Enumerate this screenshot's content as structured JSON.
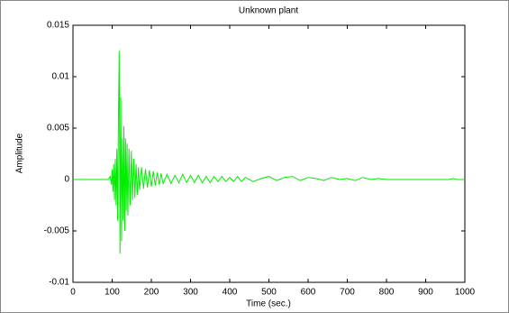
{
  "chart_data": {
    "type": "line",
    "title": "Unknown plant",
    "x_label": "Time (sec.)",
    "y_label": "Amplitude",
    "xlim": [
      0,
      1000
    ],
    "xticks": [
      0,
      100,
      200,
      300,
      400,
      500,
      600,
      700,
      800,
      900,
      1000
    ],
    "ylim": [
      -0.01,
      0.015
    ],
    "yticks": [
      -0.01,
      -0.005,
      0,
      0.005,
      0.01,
      0.015
    ],
    "x": [
      0,
      90,
      95,
      98,
      100,
      102,
      104,
      106,
      108,
      110,
      112,
      114,
      116,
      118,
      120,
      122,
      124,
      126,
      128,
      130,
      132,
      134,
      136,
      138,
      140,
      143,
      146,
      149,
      152,
      155,
      158,
      161,
      164,
      167,
      170,
      175,
      180,
      185,
      190,
      195,
      200,
      205,
      210,
      215,
      220,
      225,
      230,
      240,
      250,
      260,
      270,
      280,
      290,
      300,
      310,
      320,
      330,
      340,
      350,
      360,
      370,
      380,
      390,
      400,
      410,
      420,
      430,
      440,
      460,
      480,
      500,
      520,
      540,
      560,
      580,
      600,
      620,
      640,
      660,
      680,
      700,
      720,
      740,
      760,
      780,
      800,
      820,
      960,
      970,
      980,
      1000
    ],
    "series": [
      {
        "color": "#00ee00",
        "values": [
          0,
          0,
          0.0003,
          -0.0005,
          0.001,
          -0.0012,
          0.0015,
          -0.002,
          0.002,
          -0.0025,
          0.003,
          -0.004,
          0.006,
          0.0125,
          -0.0072,
          0.008,
          -0.006,
          0.004,
          -0.004,
          0.0052,
          -0.005,
          0.004,
          -0.003,
          0.0035,
          -0.0035,
          0.003,
          -0.0025,
          0.0028,
          -0.002,
          0.002,
          -0.0018,
          0.0015,
          -0.0015,
          0.0012,
          -0.001,
          0.0012,
          -0.0009,
          0.001,
          -0.0008,
          0.0009,
          -0.0007,
          0.0008,
          -0.0006,
          0.0007,
          -0.0005,
          0.0006,
          -0.0004,
          0.0005,
          -0.0004,
          0.0004,
          -0.0003,
          0.0005,
          -0.0003,
          0.0004,
          -0.0003,
          0.0004,
          -0.0003,
          0.0003,
          -0.0003,
          0.0003,
          -0.0002,
          0.0003,
          -0.0002,
          0.0002,
          -0.0002,
          0.0003,
          -0.0002,
          0.0002,
          -0.0002,
          0.0001,
          0.0003,
          -0.0001,
          0.0002,
          0.0003,
          -0.0001,
          0.0002,
          0.0001,
          -0.0001,
          0.0002,
          0,
          0.0001,
          -0.0001,
          0.0002,
          0,
          0.0001,
          0,
          0,
          0,
          0.0001,
          0,
          0
        ]
      }
    ]
  }
}
